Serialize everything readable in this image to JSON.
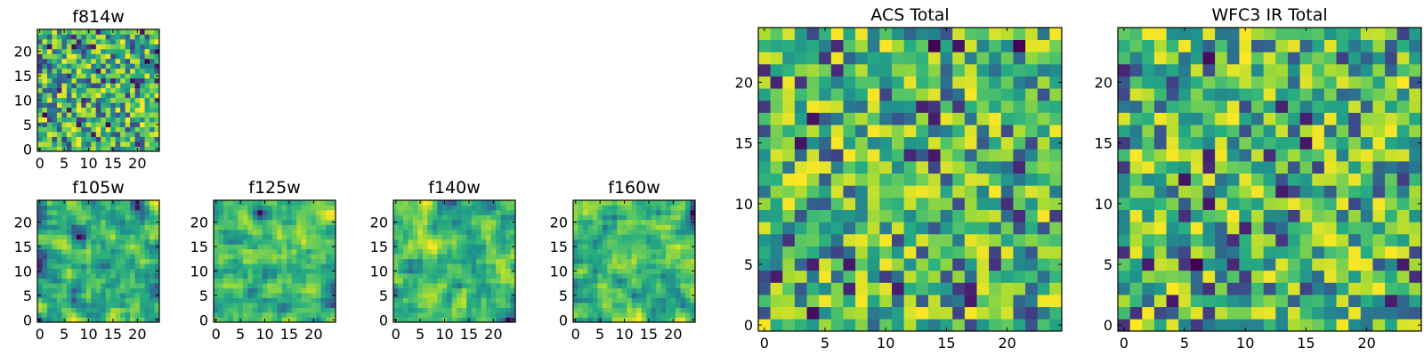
{
  "chart_data": [
    {
      "type": "heatmap",
      "panel": "f814w",
      "title": "f814w",
      "grid_size": 25,
      "xlim": [
        0,
        24
      ],
      "ylim": [
        0,
        24
      ],
      "xticks": [
        0,
        5,
        10,
        15,
        20
      ],
      "yticks": [
        0,
        5,
        10,
        15,
        20
      ],
      "colormap": "viridis",
      "style": "fine-noise",
      "seed": 11
    },
    {
      "type": "heatmap",
      "panel": "f105w",
      "title": "f105w",
      "grid_size": 25,
      "xlim": [
        0,
        24
      ],
      "ylim": [
        0,
        24
      ],
      "xticks": [
        0,
        5,
        10,
        15,
        20
      ],
      "yticks": [
        0,
        5,
        10,
        15,
        20
      ],
      "colormap": "viridis",
      "style": "smooth-noise",
      "seed": 23
    },
    {
      "type": "heatmap",
      "panel": "f125w",
      "title": "f125w",
      "grid_size": 25,
      "xlim": [
        0,
        24
      ],
      "ylim": [
        0,
        24
      ],
      "xticks": [
        0,
        5,
        10,
        15,
        20
      ],
      "yticks": [
        0,
        5,
        10,
        15,
        20
      ],
      "colormap": "viridis",
      "style": "smooth-noise",
      "seed": 37
    },
    {
      "type": "heatmap",
      "panel": "f140w",
      "title": "f140w",
      "grid_size": 25,
      "xlim": [
        0,
        24
      ],
      "ylim": [
        0,
        24
      ],
      "xticks": [
        0,
        5,
        10,
        15,
        20
      ],
      "yticks": [
        0,
        5,
        10,
        15,
        20
      ],
      "colormap": "viridis",
      "style": "smooth-noise",
      "seed": 41
    },
    {
      "type": "heatmap",
      "panel": "f160w",
      "title": "f160w",
      "grid_size": 25,
      "xlim": [
        0,
        24
      ],
      "ylim": [
        0,
        24
      ],
      "xticks": [
        0,
        5,
        10,
        15,
        20
      ],
      "yticks": [
        0,
        5,
        10,
        15,
        20
      ],
      "colormap": "viridis",
      "style": "smooth-noise",
      "seed": 53
    },
    {
      "type": "heatmap",
      "panel": "acs-total",
      "title": "ACS Total",
      "grid_size": 25,
      "xlim": [
        0,
        24
      ],
      "ylim": [
        0,
        24
      ],
      "xticks": [
        0,
        5,
        10,
        15,
        20
      ],
      "yticks": [
        0,
        5,
        10,
        15,
        20
      ],
      "colormap": "viridis",
      "style": "coarse-noise",
      "seed": 67
    },
    {
      "type": "heatmap",
      "panel": "wfc3-ir-total",
      "title": "WFC3 IR Total",
      "grid_size": 25,
      "xlim": [
        0,
        24
      ],
      "ylim": [
        0,
        24
      ],
      "xticks": [
        0,
        5,
        10,
        15,
        20
      ],
      "yticks": [
        0,
        5,
        10,
        15,
        20
      ],
      "colormap": "viridis",
      "style": "coarse-noise",
      "seed": 79
    }
  ]
}
